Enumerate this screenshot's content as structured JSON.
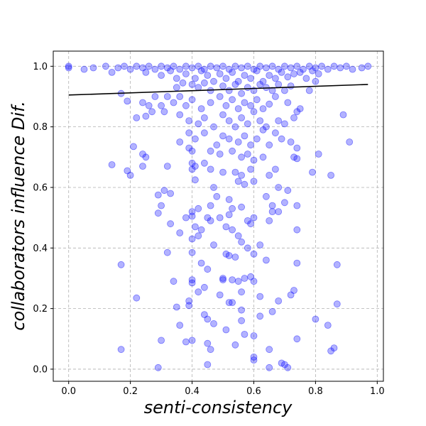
{
  "chart_data": {
    "type": "scatter",
    "title": "",
    "xlabel": "senti-consistency",
    "ylabel": "collaborators influence Dif.",
    "xlim": [
      -0.05,
      1.02
    ],
    "ylim": [
      -0.04,
      1.05
    ],
    "x_ticks": [
      "0.0",
      "0.2",
      "0.4",
      "0.6",
      "0.8",
      "1.0"
    ],
    "y_ticks": [
      "0.0",
      "0.2",
      "0.4",
      "0.6",
      "0.8",
      "1.0"
    ],
    "grid": true,
    "grid_style": "dashed",
    "point_color": "#0000ff",
    "point_alpha": 0.3,
    "trend_line_color": "#000000",
    "trend_line": {
      "x": [
        0.0,
        0.97
      ],
      "y": [
        0.905,
        0.94
      ]
    },
    "points": [
      [
        0.0,
        1.0
      ],
      [
        0.0,
        0.995
      ],
      [
        0.05,
        0.99
      ],
      [
        0.08,
        0.995
      ],
      [
        0.12,
        1.0
      ],
      [
        0.14,
        0.98
      ],
      [
        0.16,
        0.995
      ],
      [
        0.18,
        1.0
      ],
      [
        0.2,
        0.99
      ],
      [
        0.22,
        1.0
      ],
      [
        0.24,
        0.995
      ],
      [
        0.26,
        1.0
      ],
      [
        0.28,
        0.99
      ],
      [
        0.3,
        1.0
      ],
      [
        0.32,
        0.995
      ],
      [
        0.34,
        1.0
      ],
      [
        0.36,
        0.99
      ],
      [
        0.38,
        1.0
      ],
      [
        0.4,
        0.995
      ],
      [
        0.42,
        1.0
      ],
      [
        0.44,
        0.99
      ],
      [
        0.46,
        1.0
      ],
      [
        0.48,
        0.995
      ],
      [
        0.5,
        1.0
      ],
      [
        0.52,
        0.99
      ],
      [
        0.54,
        1.0
      ],
      [
        0.56,
        0.995
      ],
      [
        0.58,
        1.0
      ],
      [
        0.6,
        0.99
      ],
      [
        0.62,
        1.0
      ],
      [
        0.64,
        0.995
      ],
      [
        0.66,
        1.0
      ],
      [
        0.68,
        0.99
      ],
      [
        0.7,
        1.0
      ],
      [
        0.72,
        0.995
      ],
      [
        0.74,
        1.0
      ],
      [
        0.76,
        0.99
      ],
      [
        0.78,
        1.0
      ],
      [
        0.8,
        0.995
      ],
      [
        0.82,
        1.0
      ],
      [
        0.84,
        0.99
      ],
      [
        0.86,
        1.0
      ],
      [
        0.88,
        0.995
      ],
      [
        0.9,
        1.0
      ],
      [
        0.92,
        0.99
      ],
      [
        0.95,
        0.995
      ],
      [
        0.97,
        1.0
      ],
      [
        0.25,
        0.98
      ],
      [
        0.3,
        0.97
      ],
      [
        0.33,
        0.985
      ],
      [
        0.35,
        0.96
      ],
      [
        0.38,
        0.975
      ],
      [
        0.41,
        0.96
      ],
      [
        0.43,
        0.985
      ],
      [
        0.45,
        0.97
      ],
      [
        0.47,
        0.95
      ],
      [
        0.49,
        0.975
      ],
      [
        0.51,
        0.96
      ],
      [
        0.53,
        0.98
      ],
      [
        0.55,
        0.95
      ],
      [
        0.57,
        0.97
      ],
      [
        0.59,
        0.96
      ],
      [
        0.61,
        0.985
      ],
      [
        0.63,
        0.95
      ],
      [
        0.65,
        0.97
      ],
      [
        0.67,
        0.96
      ],
      [
        0.69,
        0.98
      ],
      [
        0.71,
        0.965
      ],
      [
        0.73,
        0.975
      ],
      [
        0.75,
        0.98
      ],
      [
        0.77,
        0.96
      ],
      [
        0.79,
        0.985
      ],
      [
        0.81,
        0.975
      ],
      [
        0.4,
        0.94
      ],
      [
        0.42,
        0.93
      ],
      [
        0.44,
        0.945
      ],
      [
        0.46,
        0.92
      ],
      [
        0.5,
        0.935
      ],
      [
        0.52,
        0.92
      ],
      [
        0.54,
        0.94
      ],
      [
        0.56,
        0.91
      ],
      [
        0.58,
        0.93
      ],
      [
        0.6,
        0.92
      ],
      [
        0.62,
        0.94
      ],
      [
        0.64,
        0.93
      ],
      [
        0.35,
        0.93
      ],
      [
        0.37,
        0.945
      ],
      [
        0.66,
        0.92
      ],
      [
        0.68,
        0.94
      ],
      [
        0.7,
        0.92
      ],
      [
        0.72,
        0.935
      ],
      [
        0.17,
        0.91
      ],
      [
        0.19,
        0.885
      ],
      [
        0.24,
        0.88
      ],
      [
        0.26,
        0.87
      ],
      [
        0.28,
        0.9
      ],
      [
        0.3,
        0.87
      ],
      [
        0.32,
        0.9
      ],
      [
        0.34,
        0.88
      ],
      [
        0.36,
        0.9
      ],
      [
        0.38,
        0.87
      ],
      [
        0.4,
        0.89
      ],
      [
        0.43,
        0.86
      ],
      [
        0.46,
        0.88
      ],
      [
        0.49,
        0.9
      ],
      [
        0.51,
        0.87
      ],
      [
        0.53,
        0.89
      ],
      [
        0.55,
        0.86
      ],
      [
        0.57,
        0.88
      ],
      [
        0.59,
        0.87
      ],
      [
        0.61,
        0.89
      ],
      [
        0.63,
        0.86
      ],
      [
        0.65,
        0.875
      ],
      [
        0.67,
        0.9
      ],
      [
        0.71,
        0.88
      ],
      [
        0.75,
        0.86
      ],
      [
        0.78,
        0.92
      ],
      [
        0.8,
        0.95
      ],
      [
        0.22,
        0.83
      ],
      [
        0.25,
        0.835
      ],
      [
        0.27,
        0.85
      ],
      [
        0.31,
        0.85
      ],
      [
        0.36,
        0.84
      ],
      [
        0.39,
        0.82
      ],
      [
        0.42,
        0.81
      ],
      [
        0.44,
        0.83
      ],
      [
        0.47,
        0.8
      ],
      [
        0.5,
        0.84
      ],
      [
        0.52,
        0.82
      ],
      [
        0.54,
        0.8
      ],
      [
        0.56,
        0.83
      ],
      [
        0.58,
        0.81
      ],
      [
        0.6,
        0.85
      ],
      [
        0.62,
        0.82
      ],
      [
        0.64,
        0.8
      ],
      [
        0.68,
        0.82
      ],
      [
        0.7,
        0.81
      ],
      [
        0.73,
        0.83
      ],
      [
        0.74,
        0.85
      ],
      [
        0.89,
        0.84
      ],
      [
        0.39,
        0.78
      ],
      [
        0.41,
        0.76
      ],
      [
        0.44,
        0.78
      ],
      [
        0.48,
        0.74
      ],
      [
        0.5,
        0.77
      ],
      [
        0.52,
        0.76
      ],
      [
        0.55,
        0.75
      ],
      [
        0.57,
        0.77
      ],
      [
        0.59,
        0.74
      ],
      [
        0.61,
        0.76
      ],
      [
        0.63,
        0.79
      ],
      [
        0.65,
        0.74
      ],
      [
        0.67,
        0.78
      ],
      [
        0.69,
        0.76
      ],
      [
        0.72,
        0.75
      ],
      [
        0.74,
        0.73
      ],
      [
        0.91,
        0.75
      ],
      [
        0.21,
        0.735
      ],
      [
        0.24,
        0.71
      ],
      [
        0.25,
        0.7
      ],
      [
        0.36,
        0.75
      ],
      [
        0.39,
        0.73
      ],
      [
        0.4,
        0.72
      ],
      [
        0.46,
        0.72
      ],
      [
        0.49,
        0.71
      ],
      [
        0.53,
        0.72
      ],
      [
        0.56,
        0.7
      ],
      [
        0.58,
        0.71
      ],
      [
        0.6,
        0.69
      ],
      [
        0.63,
        0.7
      ],
      [
        0.67,
        0.66
      ],
      [
        0.73,
        0.7
      ],
      [
        0.74,
        0.695
      ],
      [
        0.81,
        0.71
      ],
      [
        0.14,
        0.675
      ],
      [
        0.19,
        0.655
      ],
      [
        0.2,
        0.64
      ],
      [
        0.24,
        0.67
      ],
      [
        0.32,
        0.67
      ],
      [
        0.4,
        0.68
      ],
      [
        0.41,
        0.67
      ],
      [
        0.4,
        0.66
      ],
      [
        0.46,
        0.66
      ],
      [
        0.44,
        0.68
      ],
      [
        0.5,
        0.65
      ],
      [
        0.54,
        0.65
      ],
      [
        0.56,
        0.64
      ],
      [
        0.59,
        0.66
      ],
      [
        0.65,
        0.64
      ],
      [
        0.79,
        0.65
      ],
      [
        0.85,
        0.64
      ],
      [
        0.41,
        0.625
      ],
      [
        0.47,
        0.6
      ],
      [
        0.55,
        0.62
      ],
      [
        0.57,
        0.61
      ],
      [
        0.6,
        0.62
      ],
      [
        0.68,
        0.6
      ],
      [
        0.71,
        0.59
      ],
      [
        0.31,
        0.59
      ],
      [
        0.33,
        0.58
      ],
      [
        0.29,
        0.575
      ],
      [
        0.48,
        0.57
      ],
      [
        0.52,
        0.56
      ],
      [
        0.64,
        0.57
      ],
      [
        0.66,
        0.54
      ],
      [
        0.7,
        0.55
      ],
      [
        0.74,
        0.54
      ],
      [
        0.3,
        0.54
      ],
      [
        0.42,
        0.53
      ],
      [
        0.4,
        0.52
      ],
      [
        0.46,
        0.54
      ],
      [
        0.53,
        0.53
      ],
      [
        0.56,
        0.535
      ],
      [
        0.66,
        0.52
      ],
      [
        0.68,
        0.52
      ],
      [
        0.29,
        0.515
      ],
      [
        0.4,
        0.505
      ],
      [
        0.38,
        0.5
      ],
      [
        0.46,
        0.49
      ],
      [
        0.49,
        0.5
      ],
      [
        0.52,
        0.51
      ],
      [
        0.58,
        0.49
      ],
      [
        0.6,
        0.5
      ],
      [
        0.65,
        0.49
      ],
      [
        0.33,
        0.48
      ],
      [
        0.36,
        0.45
      ],
      [
        0.41,
        0.47
      ],
      [
        0.43,
        0.46
      ],
      [
        0.45,
        0.5
      ],
      [
        0.51,
        0.47
      ],
      [
        0.53,
        0.46
      ],
      [
        0.55,
        0.44
      ],
      [
        0.59,
        0.48
      ],
      [
        0.74,
        0.46
      ],
      [
        0.4,
        0.43
      ],
      [
        0.42,
        0.44
      ],
      [
        0.47,
        0.41
      ],
      [
        0.56,
        0.42
      ],
      [
        0.58,
        0.4
      ],
      [
        0.62,
        0.41
      ],
      [
        0.6,
        0.38
      ],
      [
        0.32,
        0.385
      ],
      [
        0.4,
        0.385
      ],
      [
        0.43,
        0.35
      ],
      [
        0.51,
        0.38
      ],
      [
        0.52,
        0.375
      ],
      [
        0.54,
        0.37
      ],
      [
        0.64,
        0.36
      ],
      [
        0.74,
        0.35
      ],
      [
        0.87,
        0.345
      ],
      [
        0.17,
        0.345
      ],
      [
        0.34,
        0.29
      ],
      [
        0.4,
        0.295
      ],
      [
        0.4,
        0.285
      ],
      [
        0.45,
        0.33
      ],
      [
        0.5,
        0.3
      ],
      [
        0.5,
        0.295
      ],
      [
        0.53,
        0.295
      ],
      [
        0.55,
        0.29
      ],
      [
        0.57,
        0.3
      ],
      [
        0.59,
        0.305
      ],
      [
        0.6,
        0.29
      ],
      [
        0.42,
        0.255
      ],
      [
        0.44,
        0.27
      ],
      [
        0.49,
        0.245
      ],
      [
        0.56,
        0.255
      ],
      [
        0.62,
        0.24
      ],
      [
        0.68,
        0.225
      ],
      [
        0.72,
        0.245
      ],
      [
        0.73,
        0.26
      ],
      [
        0.22,
        0.235
      ],
      [
        0.35,
        0.205
      ],
      [
        0.39,
        0.225
      ],
      [
        0.39,
        0.21
      ],
      [
        0.52,
        0.22
      ],
      [
        0.53,
        0.22
      ],
      [
        0.56,
        0.195
      ],
      [
        0.66,
        0.19
      ],
      [
        0.87,
        0.215
      ],
      [
        0.44,
        0.18
      ],
      [
        0.45,
        0.165
      ],
      [
        0.47,
        0.15
      ],
      [
        0.56,
        0.16
      ],
      [
        0.62,
        0.175
      ],
      [
        0.8,
        0.165
      ],
      [
        0.84,
        0.145
      ],
      [
        0.36,
        0.145
      ],
      [
        0.51,
        0.13
      ],
      [
        0.57,
        0.115
      ],
      [
        0.6,
        0.11
      ],
      [
        0.74,
        0.1
      ],
      [
        0.3,
        0.095
      ],
      [
        0.4,
        0.095
      ],
      [
        0.38,
        0.09
      ],
      [
        0.17,
        0.065
      ],
      [
        0.45,
        0.085
      ],
      [
        0.46,
        0.065
      ],
      [
        0.54,
        0.08
      ],
      [
        0.65,
        0.065
      ],
      [
        0.85,
        0.06
      ],
      [
        0.86,
        0.07
      ],
      [
        0.6,
        0.04
      ],
      [
        0.6,
        0.03
      ],
      [
        0.69,
        0.02
      ],
      [
        0.7,
        0.015
      ],
      [
        0.71,
        0.005
      ],
      [
        0.65,
        0.005
      ],
      [
        0.45,
        0.015
      ],
      [
        0.29,
        0.005
      ]
    ]
  }
}
